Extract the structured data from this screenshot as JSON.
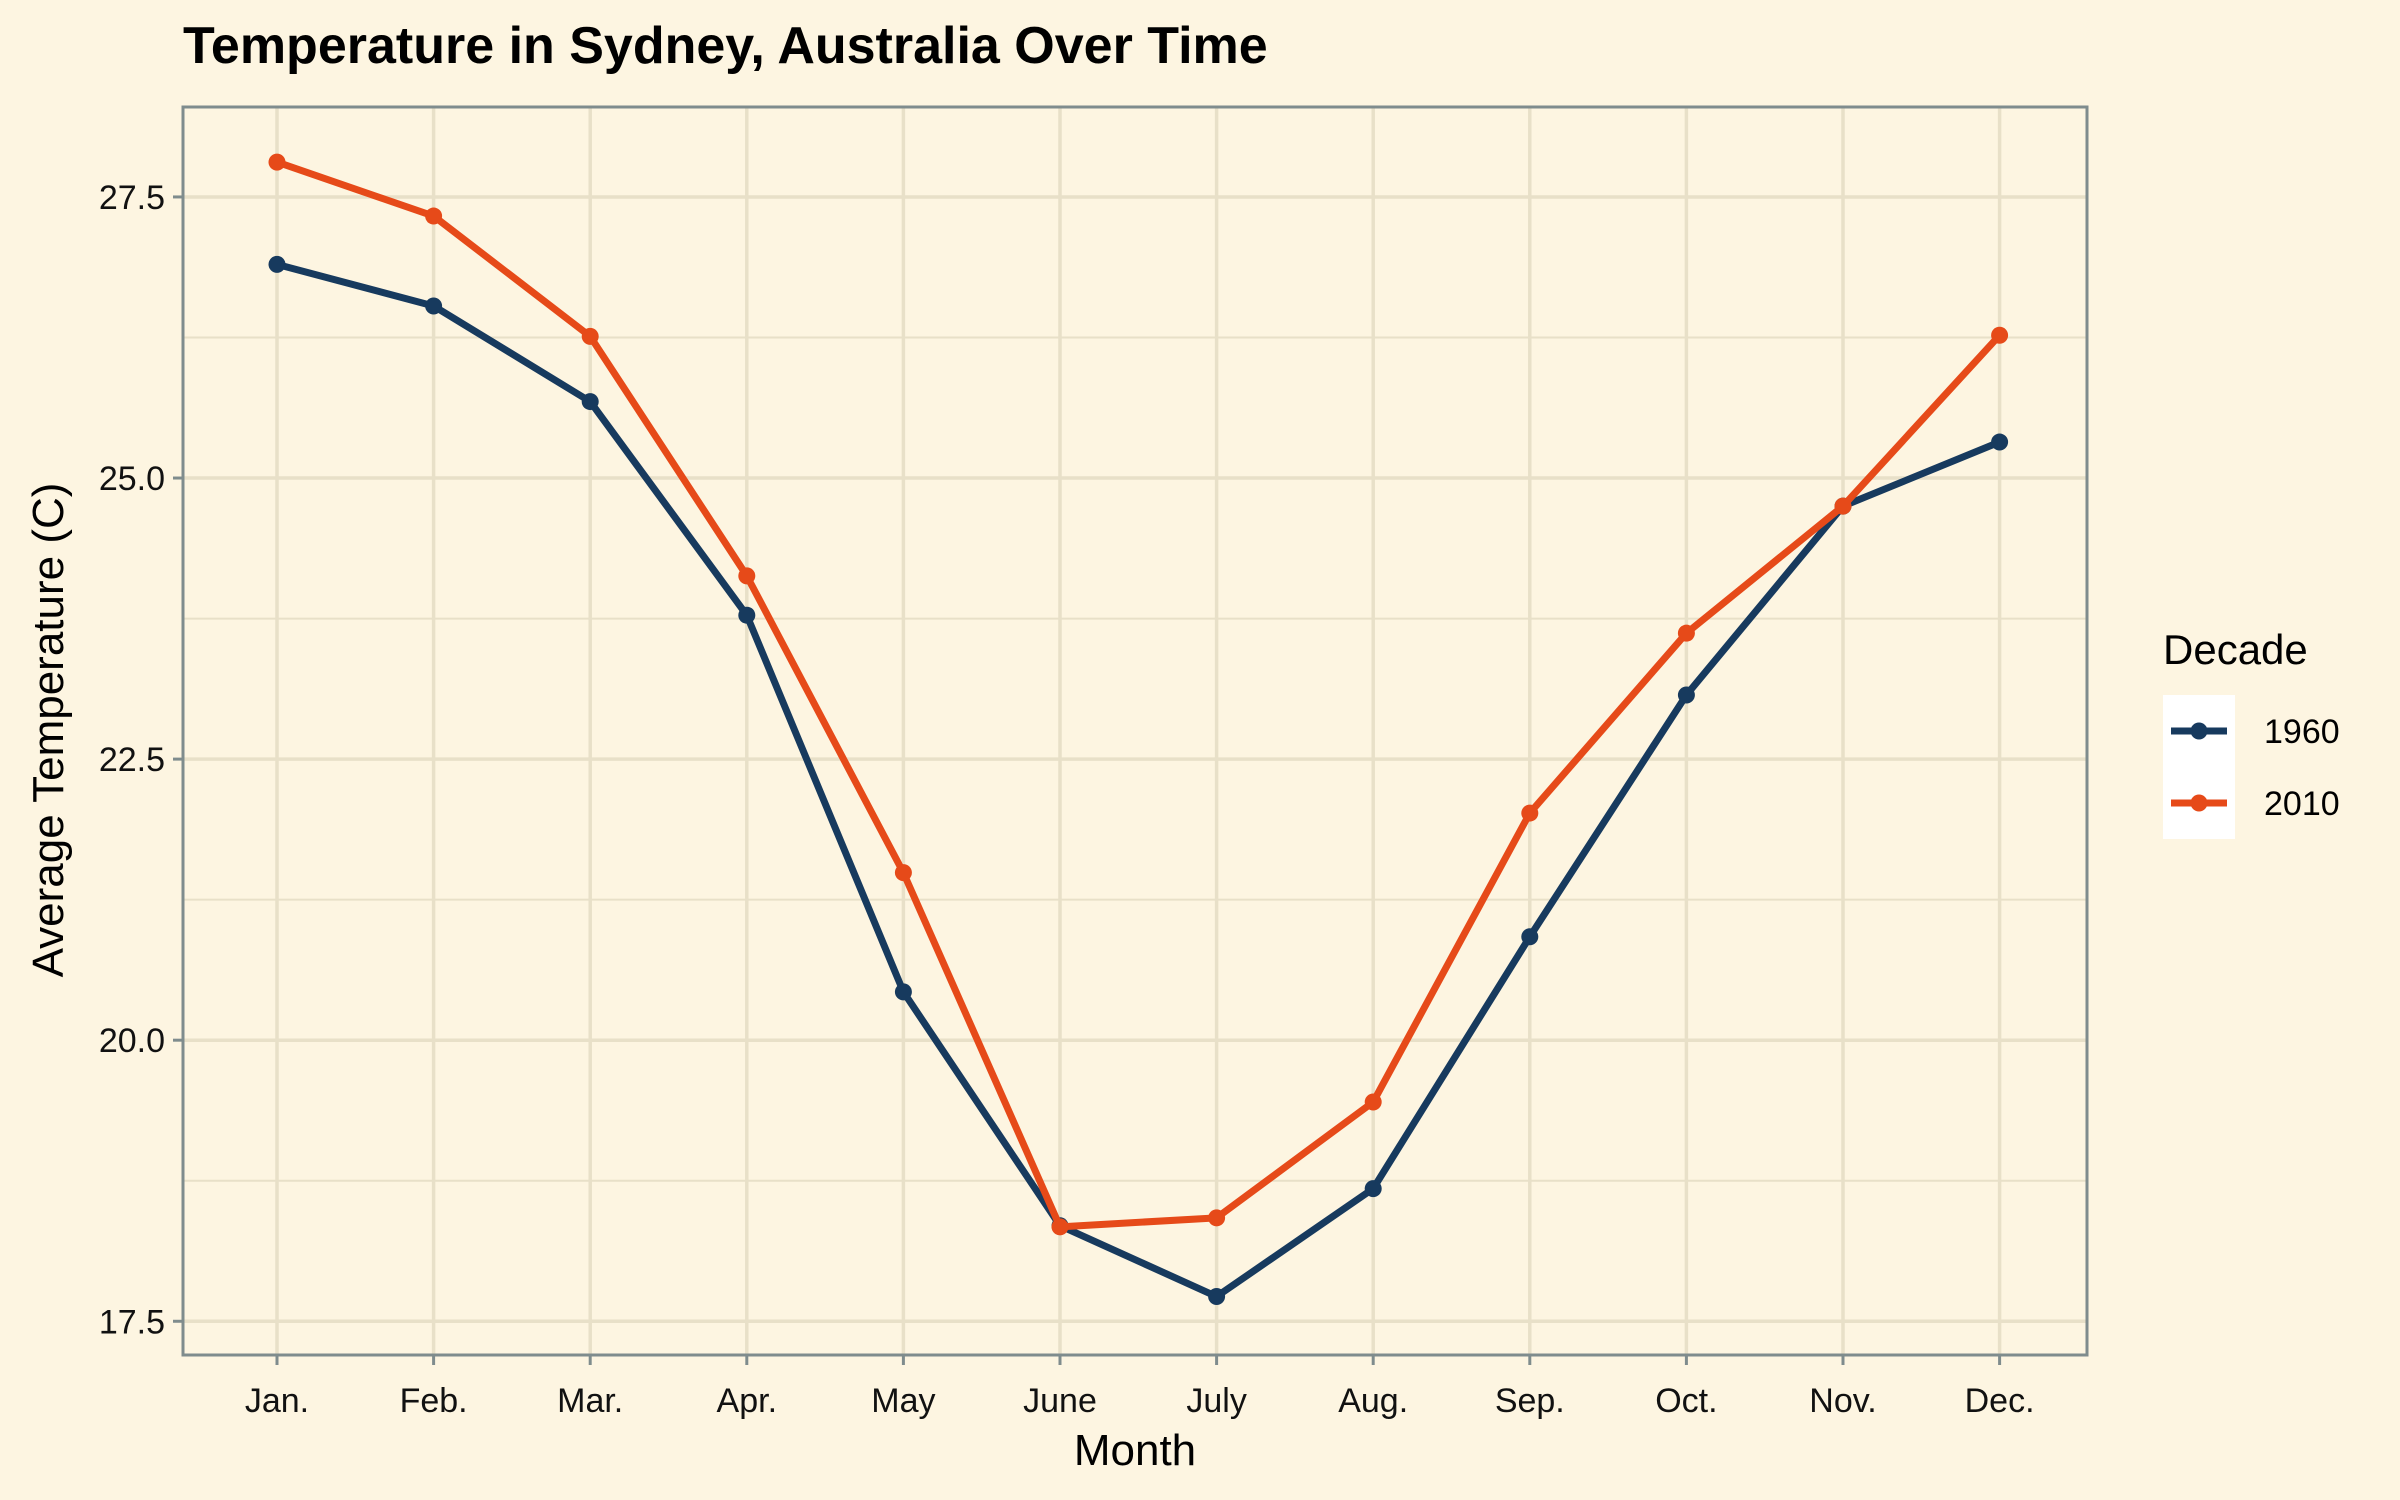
{
  "chart_data": {
    "type": "line",
    "title": "Temperature in Sydney, Australia Over Time",
    "xlabel": "Month",
    "ylabel": "Average Temperature (C)",
    "categories": [
      "Jan.",
      "Feb.",
      "Mar.",
      "Apr.",
      "May",
      "June",
      "July",
      "Aug.",
      "Sep.",
      "Oct.",
      "Nov.",
      "Dec."
    ],
    "ylim": [
      17.2,
      28.3
    ],
    "yticks": [
      17.5,
      20.0,
      22.5,
      25.0,
      27.5
    ],
    "ytick_labels": [
      "17.5",
      "20.0",
      "22.5",
      "25.0",
      "27.5"
    ],
    "grid": true,
    "legend": {
      "title": "Decade",
      "position": "right"
    },
    "series": [
      {
        "name": "1960",
        "color": "#173a5e",
        "values": [
          26.9,
          26.53,
          25.68,
          23.78,
          20.43,
          18.35,
          17.72,
          18.68,
          20.92,
          23.07,
          24.75,
          25.32
        ]
      },
      {
        "name": "2010",
        "color": "#e64a19",
        "values": [
          27.81,
          27.33,
          26.26,
          24.13,
          21.49,
          18.34,
          18.42,
          19.45,
          22.02,
          23.62,
          24.75,
          26.27
        ]
      }
    ]
  },
  "colors": {
    "background": "#fdf5e1",
    "grid": "#e8e0c8",
    "axis": "#7f8c8d"
  }
}
